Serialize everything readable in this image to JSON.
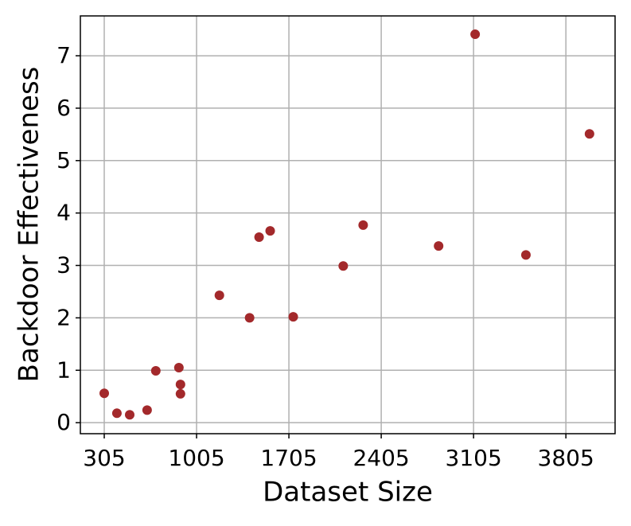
{
  "chart_data": {
    "type": "scatter",
    "xlabel": "Dataset Size",
    "ylabel": "Backdoor Effectiveness",
    "x": [
      305,
      401,
      498,
      630,
      696,
      871,
      883,
      883,
      1178,
      1407,
      1479,
      1563,
      1738,
      2117,
      2268,
      2840,
      3117,
      3502,
      3984
    ],
    "series": [
      {
        "color": "#a3292b",
        "values": [
          0.56,
          0.18,
          0.15,
          0.24,
          0.99,
          1.05,
          0.73,
          0.55,
          2.43,
          2.0,
          3.54,
          3.66,
          2.02,
          2.99,
          3.77,
          3.37,
          7.41,
          3.2,
          5.51
        ]
      }
    ],
    "xlim": [
      124,
      4178
    ],
    "xticks": [
      305,
      1005,
      1705,
      2405,
      3105,
      3805
    ],
    "ylim": [
      -0.21,
      7.76
    ],
    "yticks": [
      0,
      1,
      2,
      3,
      4,
      5,
      6,
      7
    ],
    "grid": true
  }
}
